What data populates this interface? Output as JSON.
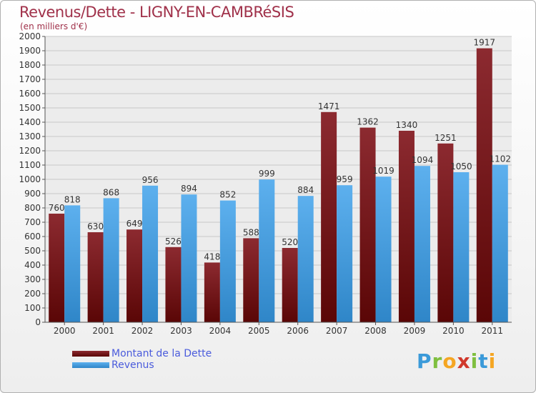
{
  "chart_data": {
    "type": "bar",
    "title": "Revenus/Dette - LIGNY-EN-CAMBRéSIS",
    "subtitle": "(en milliers d'€)",
    "categories": [
      "2000",
      "2001",
      "2002",
      "2003",
      "2004",
      "2005",
      "2006",
      "2007",
      "2008",
      "2009",
      "2010",
      "2011"
    ],
    "series": [
      {
        "name": "Montant de la Dette",
        "values": [
          760,
          630,
          649,
          526,
          418,
          588,
          520,
          1471,
          1362,
          1340,
          1251,
          1917
        ],
        "color": "#7a1a1e"
      },
      {
        "name": "Revenus",
        "values": [
          818,
          868,
          956,
          894,
          852,
          999,
          884,
          959,
          1019,
          1094,
          1050,
          1102
        ],
        "color": "#4a9fe0"
      }
    ],
    "ylim": [
      0,
      2000
    ],
    "yticks": [
      0,
      100,
      200,
      300,
      400,
      500,
      600,
      700,
      800,
      900,
      1000,
      1100,
      1200,
      1300,
      1400,
      1500,
      1600,
      1700,
      1800,
      1900,
      2000
    ],
    "grid": true,
    "legend_position": "bottom-left"
  },
  "logo": {
    "letters": [
      "P",
      "r",
      "o",
      "x",
      "i",
      "t",
      "i"
    ],
    "colors": [
      "#3b9ad9",
      "#7fbf3f",
      "#f5a623",
      "#d0382b",
      "#7fbf3f",
      "#3b9ad9",
      "#f5a623"
    ]
  }
}
